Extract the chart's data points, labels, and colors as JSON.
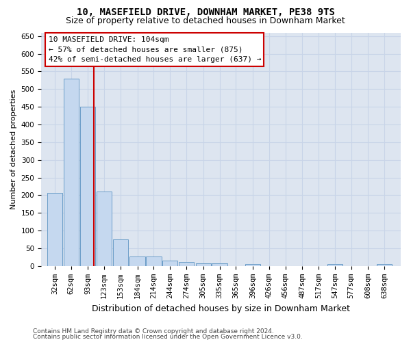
{
  "title": "10, MASEFIELD DRIVE, DOWNHAM MARKET, PE38 9TS",
  "subtitle": "Size of property relative to detached houses in Downham Market",
  "xlabel": "Distribution of detached houses by size in Downham Market",
  "ylabel": "Number of detached properties",
  "footer1": "Contains HM Land Registry data © Crown copyright and database right 2024.",
  "footer2": "Contains public sector information licensed under the Open Government Licence v3.0.",
  "annotation_line1": "10 MASEFIELD DRIVE: 104sqm",
  "annotation_line2": "← 57% of detached houses are smaller (875)",
  "annotation_line3": "42% of semi-detached houses are larger (637) →",
  "subject_value": 104,
  "categories": [
    32,
    62,
    93,
    123,
    153,
    184,
    214,
    244,
    274,
    305,
    335,
    365,
    396,
    426,
    456,
    487,
    517,
    547,
    577,
    608,
    638
  ],
  "values": [
    207,
    530,
    450,
    210,
    75,
    27,
    26,
    15,
    12,
    8,
    7,
    0,
    5,
    0,
    0,
    0,
    0,
    5,
    0,
    0,
    5
  ],
  "bar_color": "#c5d8ef",
  "bar_edge_color": "#6b9dc8",
  "red_line_color": "#cc0000",
  "grid_color": "#c8d4e8",
  "bg_color": "#dde5f0",
  "annotation_box_color": "#ffffff",
  "annotation_border_color": "#cc0000",
  "title_fontsize": 10,
  "subtitle_fontsize": 9,
  "ylabel_fontsize": 8,
  "xlabel_fontsize": 9,
  "tick_fontsize": 7.5,
  "annotation_fontsize": 8,
  "footer_fontsize": 6.5,
  "ylim": [
    0,
    660
  ]
}
